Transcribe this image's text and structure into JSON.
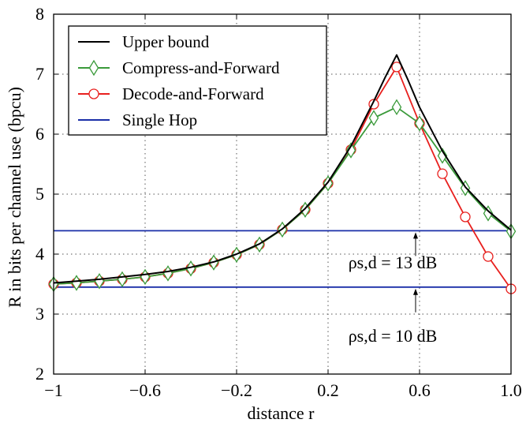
{
  "chart_data": {
    "type": "line",
    "xlabel": "distance r",
    "ylabel": "R in bits per channel use (bpcu)",
    "xlim": [
      -1,
      1
    ],
    "ylim": [
      2,
      8
    ],
    "xticks": [
      -1,
      -0.6,
      -0.2,
      0.2,
      0.6,
      1.0
    ],
    "xtick_labels": [
      "−1",
      "−0.6",
      "−0.2",
      "0.2",
      "0.6",
      "1.0"
    ],
    "yticks": [
      2,
      3,
      4,
      5,
      6,
      7,
      8
    ],
    "ytick_labels": [
      "2",
      "3",
      "4",
      "5",
      "6",
      "7",
      "8"
    ],
    "grid": true,
    "legend_position": "top-left",
    "series": [
      {
        "name": "Upper bound",
        "color": "#000000",
        "marker": "none",
        "x": [
          -1,
          -0.9,
          -0.8,
          -0.7,
          -0.6,
          -0.5,
          -0.4,
          -0.3,
          -0.2,
          -0.1,
          0,
          0.1,
          0.2,
          0.3,
          0.4,
          0.45,
          0.5,
          0.55,
          0.6,
          0.7,
          0.8,
          0.9,
          1.0
        ],
        "values": [
          3.52,
          3.55,
          3.58,
          3.62,
          3.66,
          3.71,
          3.78,
          3.87,
          4.0,
          4.17,
          4.42,
          4.76,
          5.2,
          5.8,
          6.55,
          6.95,
          7.32,
          6.9,
          6.45,
          5.72,
          5.12,
          4.72,
          4.4
        ]
      },
      {
        "name": "Compress-and-Forward",
        "color": "#3a9a3a",
        "marker": "diamond",
        "x": [
          -1,
          -0.9,
          -0.8,
          -0.7,
          -0.6,
          -0.5,
          -0.4,
          -0.3,
          -0.2,
          -0.1,
          0,
          0.1,
          0.2,
          0.3,
          0.4,
          0.5,
          0.6,
          0.7,
          0.8,
          0.9,
          1.0
        ],
        "values": [
          3.5,
          3.52,
          3.55,
          3.58,
          3.62,
          3.68,
          3.76,
          3.86,
          3.99,
          4.16,
          4.41,
          4.74,
          5.18,
          5.73,
          6.27,
          6.45,
          6.18,
          5.64,
          5.1,
          4.68,
          4.38
        ]
      },
      {
        "name": "Decode-and-Forward",
        "color": "#e8201e",
        "marker": "circle",
        "x": [
          -1,
          -0.9,
          -0.8,
          -0.7,
          -0.6,
          -0.5,
          -0.4,
          -0.3,
          -0.2,
          -0.1,
          0,
          0.1,
          0.2,
          0.3,
          0.4,
          0.5,
          0.6,
          0.7,
          0.8,
          0.9,
          1.0
        ],
        "values": [
          3.5,
          3.52,
          3.55,
          3.58,
          3.62,
          3.68,
          3.76,
          3.86,
          3.99,
          4.16,
          4.41,
          4.74,
          5.18,
          5.74,
          6.5,
          7.12,
          6.18,
          5.34,
          4.62,
          3.96,
          3.42
        ]
      },
      {
        "name": "Single Hop",
        "color": "#1a2fa8",
        "marker": "none",
        "lines": [
          4.39,
          3.45
        ]
      }
    ],
    "annotations": [
      {
        "text": "ρs,d = 13 dB",
        "arrow_to": [
          0.6,
          4.39
        ]
      },
      {
        "text": "ρs,d = 10 dB",
        "arrow_to": [
          0.6,
          3.45
        ]
      }
    ]
  }
}
